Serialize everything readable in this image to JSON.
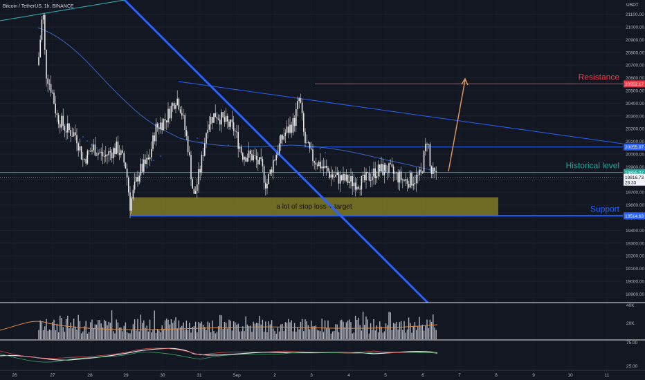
{
  "header": {
    "symbol_line": "Bitcoin / TetherUS, 1h, BINANCE"
  },
  "price_axis": {
    "currency": "USDT",
    "ticks": [
      "21100.00",
      "21000.00",
      "20900.00",
      "20800.00",
      "20700.00",
      "20600.00",
      "20500.00",
      "20400.00",
      "20300.00",
      "20200.00",
      "20100.00",
      "20000.00",
      "19900.00",
      "19800.00",
      "19700.00",
      "19600.00",
      "19500.00",
      "19400.00",
      "19300.00",
      "19200.00",
      "19100.00",
      "19000.00",
      "18900.00"
    ],
    "badges": {
      "resistance": "20552.17",
      "upper_blue": "20055.97",
      "historical": "19855.07",
      "last_price": "19816.73",
      "countdown": "26:33",
      "support": "19514.63"
    }
  },
  "time_axis": {
    "labels": [
      "26",
      "27",
      "28",
      "29",
      "30",
      "31",
      "Sep",
      "2",
      "3",
      "4",
      "5",
      "6",
      "7",
      "8",
      "9",
      "10",
      "11"
    ]
  },
  "annotations": {
    "resistance": "Resistance",
    "historical": "Historical level",
    "support": "Support",
    "zone": "a lot of stop loss + target"
  },
  "volume_axis": {
    "ticks": [
      "40K",
      "20K"
    ]
  },
  "osc_axis": {
    "ticks": [
      "75.00",
      "25.00"
    ]
  },
  "colors": {
    "background": "#131722",
    "resistance": "#f23645",
    "historical": "#26a69a",
    "support": "#2962ff",
    "trendline": "#2962ff",
    "zone": "#807a24",
    "arrow": "#e0935a",
    "candles": "#e7e7e7"
  },
  "chart_data": {
    "type": "candlestick",
    "title": "Bitcoin / TetherUS, 1h, BINANCE",
    "y_unit": "USDT",
    "ylim": [
      18850,
      21180
    ],
    "x_labels": [
      "26",
      "27",
      "28",
      "29",
      "30",
      "31",
      "Sep",
      "2",
      "3",
      "4",
      "5",
      "6",
      "7",
      "8",
      "9",
      "10",
      "11"
    ],
    "levels": {
      "resistance": 20552.17,
      "upper_blue": 20055.97,
      "historical": 19855.07,
      "support": 19514.63,
      "last": 19816.73
    },
    "zone": {
      "from_price": 19514.63,
      "to_price": 19660,
      "label": "a lot of stop loss + target"
    },
    "close_path": [
      [
        "26",
        20700
      ],
      [
        "26.5",
        20900
      ],
      [
        "26.7",
        21100
      ],
      [
        "27",
        20600
      ],
      [
        "27.3",
        20300
      ],
      [
        "27.6",
        20250
      ],
      [
        "27.9",
        20150
      ],
      [
        "28.2",
        20050
      ],
      [
        "28.6",
        20100
      ],
      [
        "28.9",
        19950
      ],
      [
        "29.1",
        19600
      ],
      [
        "29.4",
        19850
      ],
      [
        "29.7",
        20200
      ],
      [
        "30",
        20350
      ],
      [
        "30.3",
        20500
      ],
      [
        "30.6",
        19900
      ],
      [
        "30.9",
        20100
      ],
      [
        "31.2",
        20350
      ],
      [
        "31.6",
        20300
      ],
      [
        "31.9",
        20150
      ],
      [
        "Sep.2",
        19950
      ],
      [
        "Sep.5",
        19800
      ],
      [
        "2",
        20000
      ],
      [
        "2.3",
        20150
      ],
      [
        "2.7",
        20300
      ],
      [
        "3",
        20100
      ],
      [
        "3.3",
        19900
      ],
      [
        "3.7",
        19850
      ],
      [
        "4",
        19800
      ],
      [
        "4.4",
        19750
      ],
      [
        "4.7",
        19800
      ],
      [
        "5",
        19850
      ],
      [
        "5.3",
        19900
      ],
      [
        "5.6",
        19800
      ],
      [
        "5.9",
        19850
      ],
      [
        "6",
        20000
      ],
      [
        "6.2",
        19830
      ],
      [
        "6.3",
        19816.73
      ]
    ],
    "volume_ylim": [
      0,
      40000
    ],
    "oscillator_ylim": [
      0,
      100
    ]
  }
}
